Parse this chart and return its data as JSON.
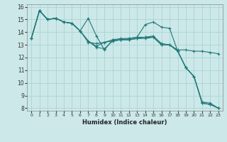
{
  "xlabel": "Humidex (Indice chaleur)",
  "background_color": "#cce8e8",
  "grid_color": "#aad4d4",
  "line_color": "#207878",
  "xlim": [
    -0.5,
    23.5
  ],
  "ylim": [
    7.8,
    16.2
  ],
  "yticks": [
    8,
    9,
    10,
    11,
    12,
    13,
    14,
    15,
    16
  ],
  "xticks": [
    0,
    1,
    2,
    3,
    4,
    5,
    6,
    7,
    8,
    9,
    10,
    11,
    12,
    13,
    14,
    15,
    16,
    17,
    18,
    19,
    20,
    21,
    22,
    23
  ],
  "lines": [
    {
      "x": [
        0,
        1,
        2,
        3,
        4,
        5,
        6,
        7,
        8,
        9,
        10,
        11,
        12,
        13,
        14,
        15,
        16,
        17,
        18,
        19,
        20,
        21,
        22,
        23
      ],
      "y": [
        13.5,
        15.7,
        15.0,
        15.1,
        14.8,
        14.7,
        14.1,
        15.1,
        13.7,
        12.6,
        13.4,
        13.4,
        13.5,
        13.6,
        14.6,
        14.8,
        14.4,
        14.3,
        12.5,
        11.2,
        10.5,
        8.4,
        8.3,
        8.0
      ]
    },
    {
      "x": [
        0,
        1,
        2,
        3,
        4,
        5,
        6,
        7,
        8,
        9,
        10,
        11,
        12,
        13,
        14,
        15,
        16,
        17,
        18,
        19,
        20,
        21,
        22,
        23
      ],
      "y": [
        13.5,
        15.7,
        15.0,
        15.1,
        14.8,
        14.7,
        14.1,
        13.2,
        13.1,
        13.2,
        13.4,
        13.5,
        13.5,
        13.6,
        13.6,
        13.7,
        13.1,
        13.0,
        12.6,
        12.6,
        12.5,
        12.5,
        12.4,
        12.3
      ]
    },
    {
      "x": [
        0,
        1,
        2,
        3,
        4,
        5,
        6,
        7,
        8,
        9,
        10,
        11,
        12,
        13,
        14,
        15,
        16,
        17,
        18,
        19,
        20,
        21,
        22,
        23
      ],
      "y": [
        13.5,
        15.7,
        15.0,
        15.1,
        14.8,
        14.7,
        14.1,
        13.3,
        12.9,
        13.2,
        13.3,
        13.4,
        13.4,
        13.5,
        13.6,
        13.6,
        13.0,
        13.0,
        12.5,
        11.2,
        10.5,
        8.4,
        8.3,
        8.0
      ]
    },
    {
      "x": [
        0,
        1,
        2,
        3,
        4,
        5,
        6,
        7,
        8,
        9,
        10,
        11,
        12,
        13,
        14,
        15,
        16,
        17,
        18,
        19,
        20,
        21,
        22,
        23
      ],
      "y": [
        13.5,
        15.7,
        15.0,
        15.1,
        14.8,
        14.7,
        14.1,
        13.3,
        12.8,
        12.7,
        13.3,
        13.4,
        13.4,
        13.5,
        13.5,
        13.6,
        13.0,
        13.0,
        12.5,
        11.2,
        10.5,
        8.5,
        8.4,
        8.0
      ]
    }
  ]
}
